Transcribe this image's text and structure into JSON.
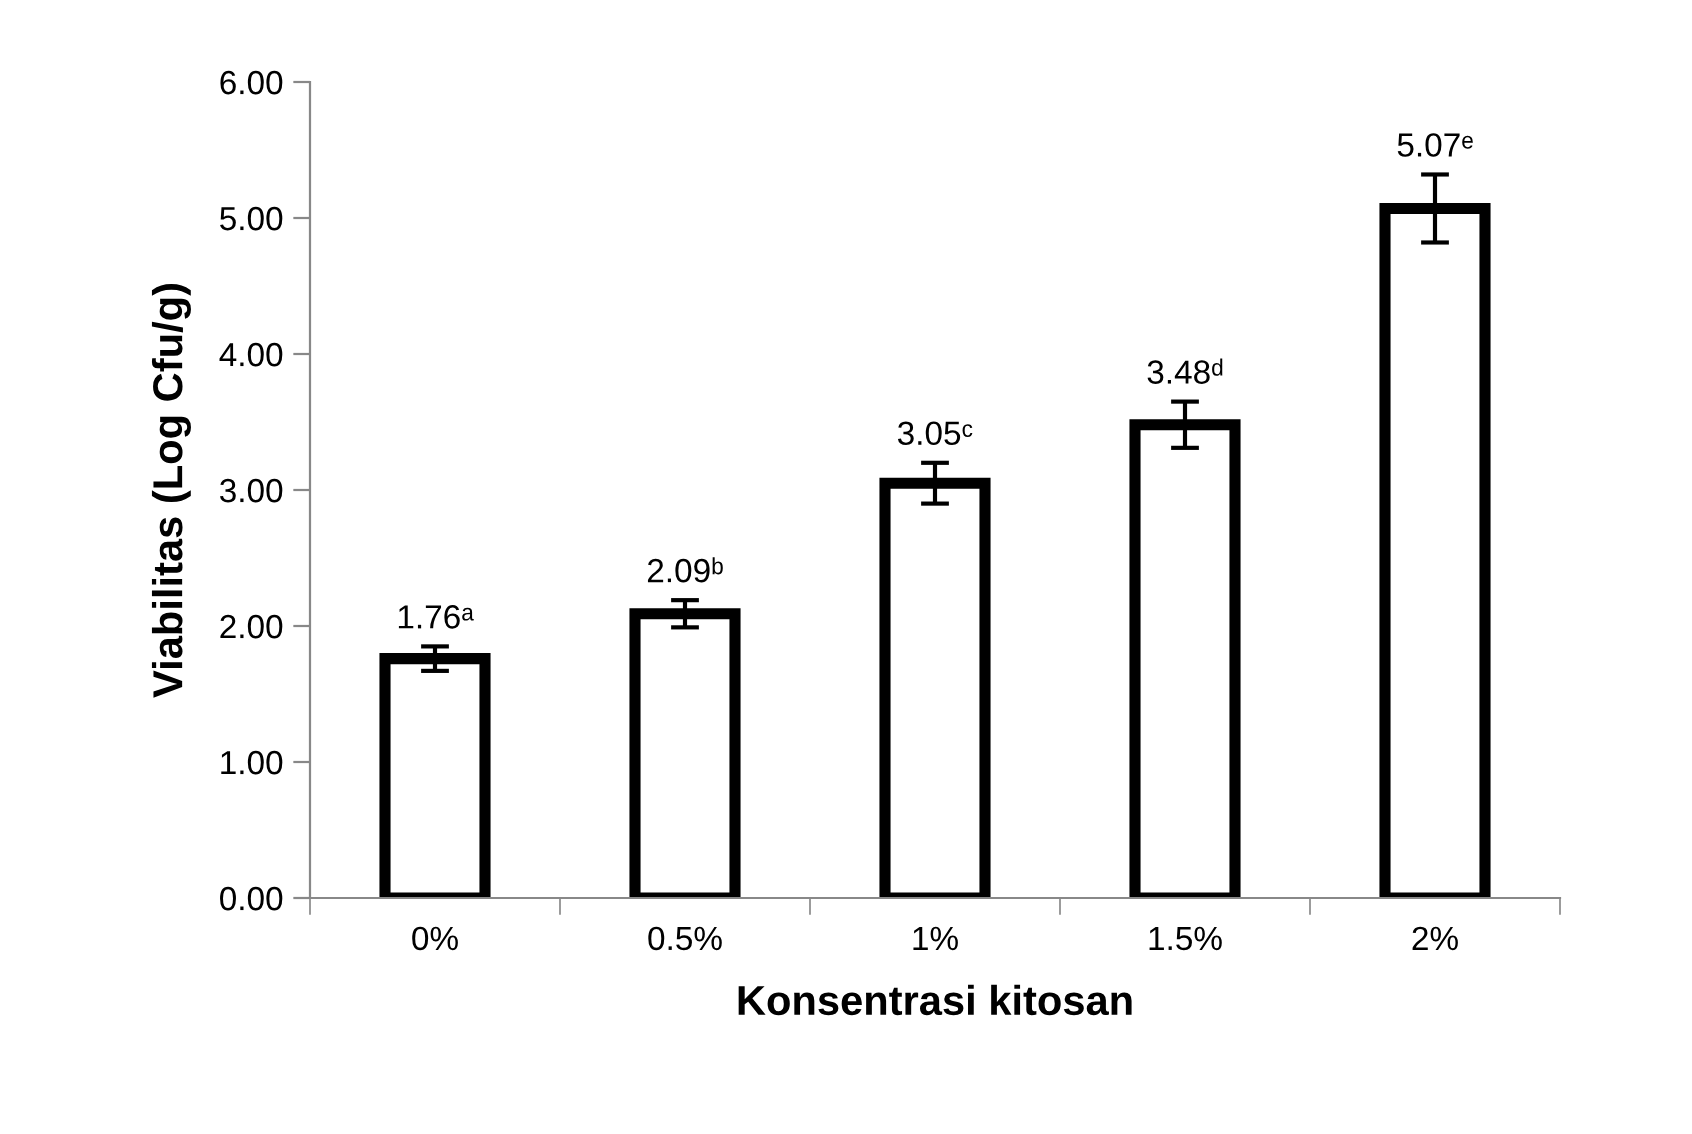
{
  "chart_data": {
    "type": "bar",
    "xlabel": "Konsentrasi kitosan",
    "ylabel": "Viabilitas (Log Cfu/g)",
    "categories": [
      "0%",
      "0.5%",
      "1%",
      "1.5%",
      "2%"
    ],
    "values": [
      1.76,
      2.09,
      3.05,
      3.48,
      5.07
    ],
    "errors": [
      0.09,
      0.1,
      0.15,
      0.17,
      0.25
    ],
    "value_labels": [
      "1.76ᵃ",
      "2.09ᵇ",
      "3.05ᶜ",
      "3.48ᵈ",
      "5.07ᵉ"
    ],
    "color": "#ffffff",
    "ylim": [
      0,
      6
    ],
    "yticks": [
      {
        "value": 0,
        "label": "0.00"
      },
      {
        "value": 1,
        "label": "1.00"
      },
      {
        "value": 2,
        "label": "2.00"
      },
      {
        "value": 3,
        "label": "3.00"
      },
      {
        "value": 4,
        "label": "4.00"
      },
      {
        "value": 5,
        "label": "5.00"
      },
      {
        "value": 6,
        "label": "6.00"
      }
    ],
    "grid": false,
    "legend": false
  }
}
